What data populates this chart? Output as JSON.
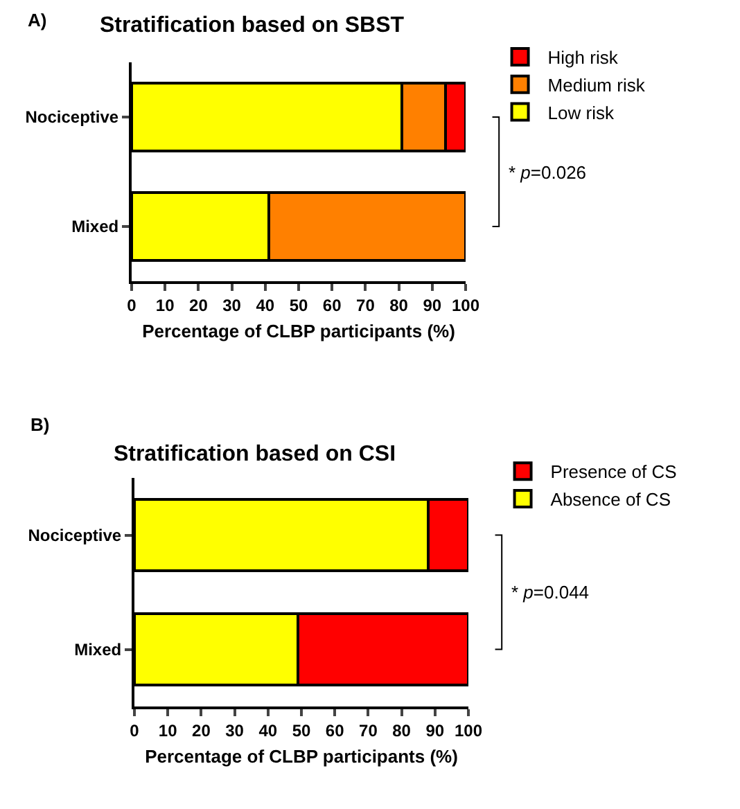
{
  "chart_data": [
    {
      "type": "bar",
      "orientation": "horizontal",
      "stacked": true,
      "title": "Stratification based on SBST",
      "xlabel": "Percentage of CLBP participants (%)",
      "categories": [
        "Nociceptive",
        "Mixed"
      ],
      "series": [
        {
          "name": "Low risk",
          "color": "#ffff00",
          "values": [
            81,
            41
          ]
        },
        {
          "name": "Medium risk",
          "color": "#ff8000",
          "values": [
            13,
            59
          ]
        },
        {
          "name": "High risk",
          "color": "#ff0000",
          "values": [
            6,
            null
          ]
        }
      ],
      "xlim": [
        0,
        100
      ],
      "xticks": [
        0,
        10,
        20,
        30,
        40,
        50,
        60,
        70,
        80,
        90,
        100
      ],
      "legend": "top right",
      "annotations": [
        "A)",
        "* p=0.026"
      ]
    },
    {
      "type": "bar",
      "orientation": "horizontal",
      "stacked": true,
      "title": "Stratification based on CSI",
      "xlabel": "Percentage of CLBP participants (%)",
      "categories": [
        "Nociceptive",
        "Mixed"
      ],
      "series": [
        {
          "name": "Absence of CS",
          "color": "#ffff00",
          "values": [
            88,
            49
          ]
        },
        {
          "name": "Presence of CS",
          "color": "#ff0000",
          "values": [
            12,
            51
          ]
        }
      ],
      "xlim": [
        0,
        100
      ],
      "xticks": [
        0,
        10,
        20,
        30,
        40,
        50,
        60,
        70,
        80,
        90,
        100
      ],
      "legend": "top right",
      "annotations": [
        "B)",
        "* p=0.044"
      ]
    }
  ]
}
